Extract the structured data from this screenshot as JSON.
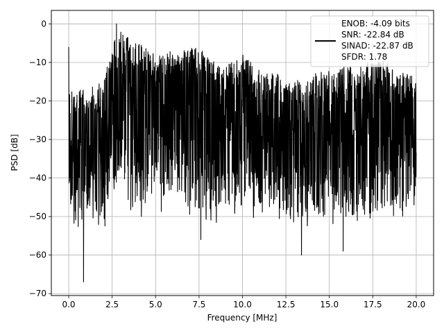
{
  "chart_data": {
    "type": "line",
    "title": "",
    "xlabel": "Frequency [MHz]",
    "ylabel": "PSD [dB]",
    "xlim": [
      -1.0,
      21.0
    ],
    "ylim": [
      -70.5,
      3.5
    ],
    "xticks": [
      0.0,
      2.5,
      5.0,
      7.5,
      10.0,
      12.5,
      15.0,
      17.5,
      20.0
    ],
    "xtick_labels": [
      "0.0",
      "2.5",
      "5.0",
      "7.5",
      "10.0",
      "12.5",
      "15.0",
      "17.5",
      "20.0"
    ],
    "yticks": [
      0,
      -10,
      -20,
      -30,
      -40,
      -50,
      -60,
      -70
    ],
    "ytick_labels": [
      "0",
      "−10",
      "−20",
      "−30",
      "−40",
      "−50",
      "−60",
      "−70"
    ],
    "grid": true,
    "legend_position": "top-right",
    "legend": [
      "ENOB: -4.09 bits",
      "SNR: -22.84 dB",
      "SINAD: -22.87 dB",
      "SFDR: 1.78"
    ],
    "line_color": "#000000",
    "series": [
      {
        "x_start": 0.0,
        "x_end": 20.0,
        "notable_points": [
          {
            "x": 0.0,
            "y": -6
          },
          {
            "x": 0.85,
            "y": -67
          },
          {
            "x": 2.75,
            "y": 0
          },
          {
            "x": 7.6,
            "y": -56
          },
          {
            "x": 13.4,
            "y": -60
          },
          {
            "x": 15.8,
            "y": -59
          },
          {
            "x": 17.9,
            "y": -10
          }
        ],
        "envelope": [
          {
            "x": 0.0,
            "upper": -17,
            "lower": -48
          },
          {
            "x": 1.0,
            "upper": -17,
            "lower": -52
          },
          {
            "x": 2.0,
            "upper": -15,
            "lower": -50
          },
          {
            "x": 2.5,
            "upper": -5,
            "lower": -42
          },
          {
            "x": 3.0,
            "upper": -2,
            "lower": -40
          },
          {
            "x": 4.0,
            "upper": -5,
            "lower": -48
          },
          {
            "x": 5.0,
            "upper": -8,
            "lower": -45
          },
          {
            "x": 6.0,
            "upper": -7,
            "lower": -45
          },
          {
            "x": 7.0,
            "upper": -6,
            "lower": -47
          },
          {
            "x": 8.0,
            "upper": -7,
            "lower": -48
          },
          {
            "x": 9.0,
            "upper": -11,
            "lower": -48
          },
          {
            "x": 10.0,
            "upper": -8,
            "lower": -47
          },
          {
            "x": 11.0,
            "upper": -12,
            "lower": -48
          },
          {
            "x": 12.0,
            "upper": -13,
            "lower": -48
          },
          {
            "x": 13.0,
            "upper": -15,
            "lower": -52
          },
          {
            "x": 14.0,
            "upper": -13,
            "lower": -50
          },
          {
            "x": 15.0,
            "upper": -12,
            "lower": -50
          },
          {
            "x": 16.0,
            "upper": -11,
            "lower": -50
          },
          {
            "x": 17.0,
            "upper": -10,
            "lower": -50
          },
          {
            "x": 18.0,
            "upper": -9,
            "lower": -48
          },
          {
            "x": 19.0,
            "upper": -12,
            "lower": -47
          },
          {
            "x": 20.0,
            "upper": -14,
            "lower": -45
          }
        ]
      }
    ]
  }
}
